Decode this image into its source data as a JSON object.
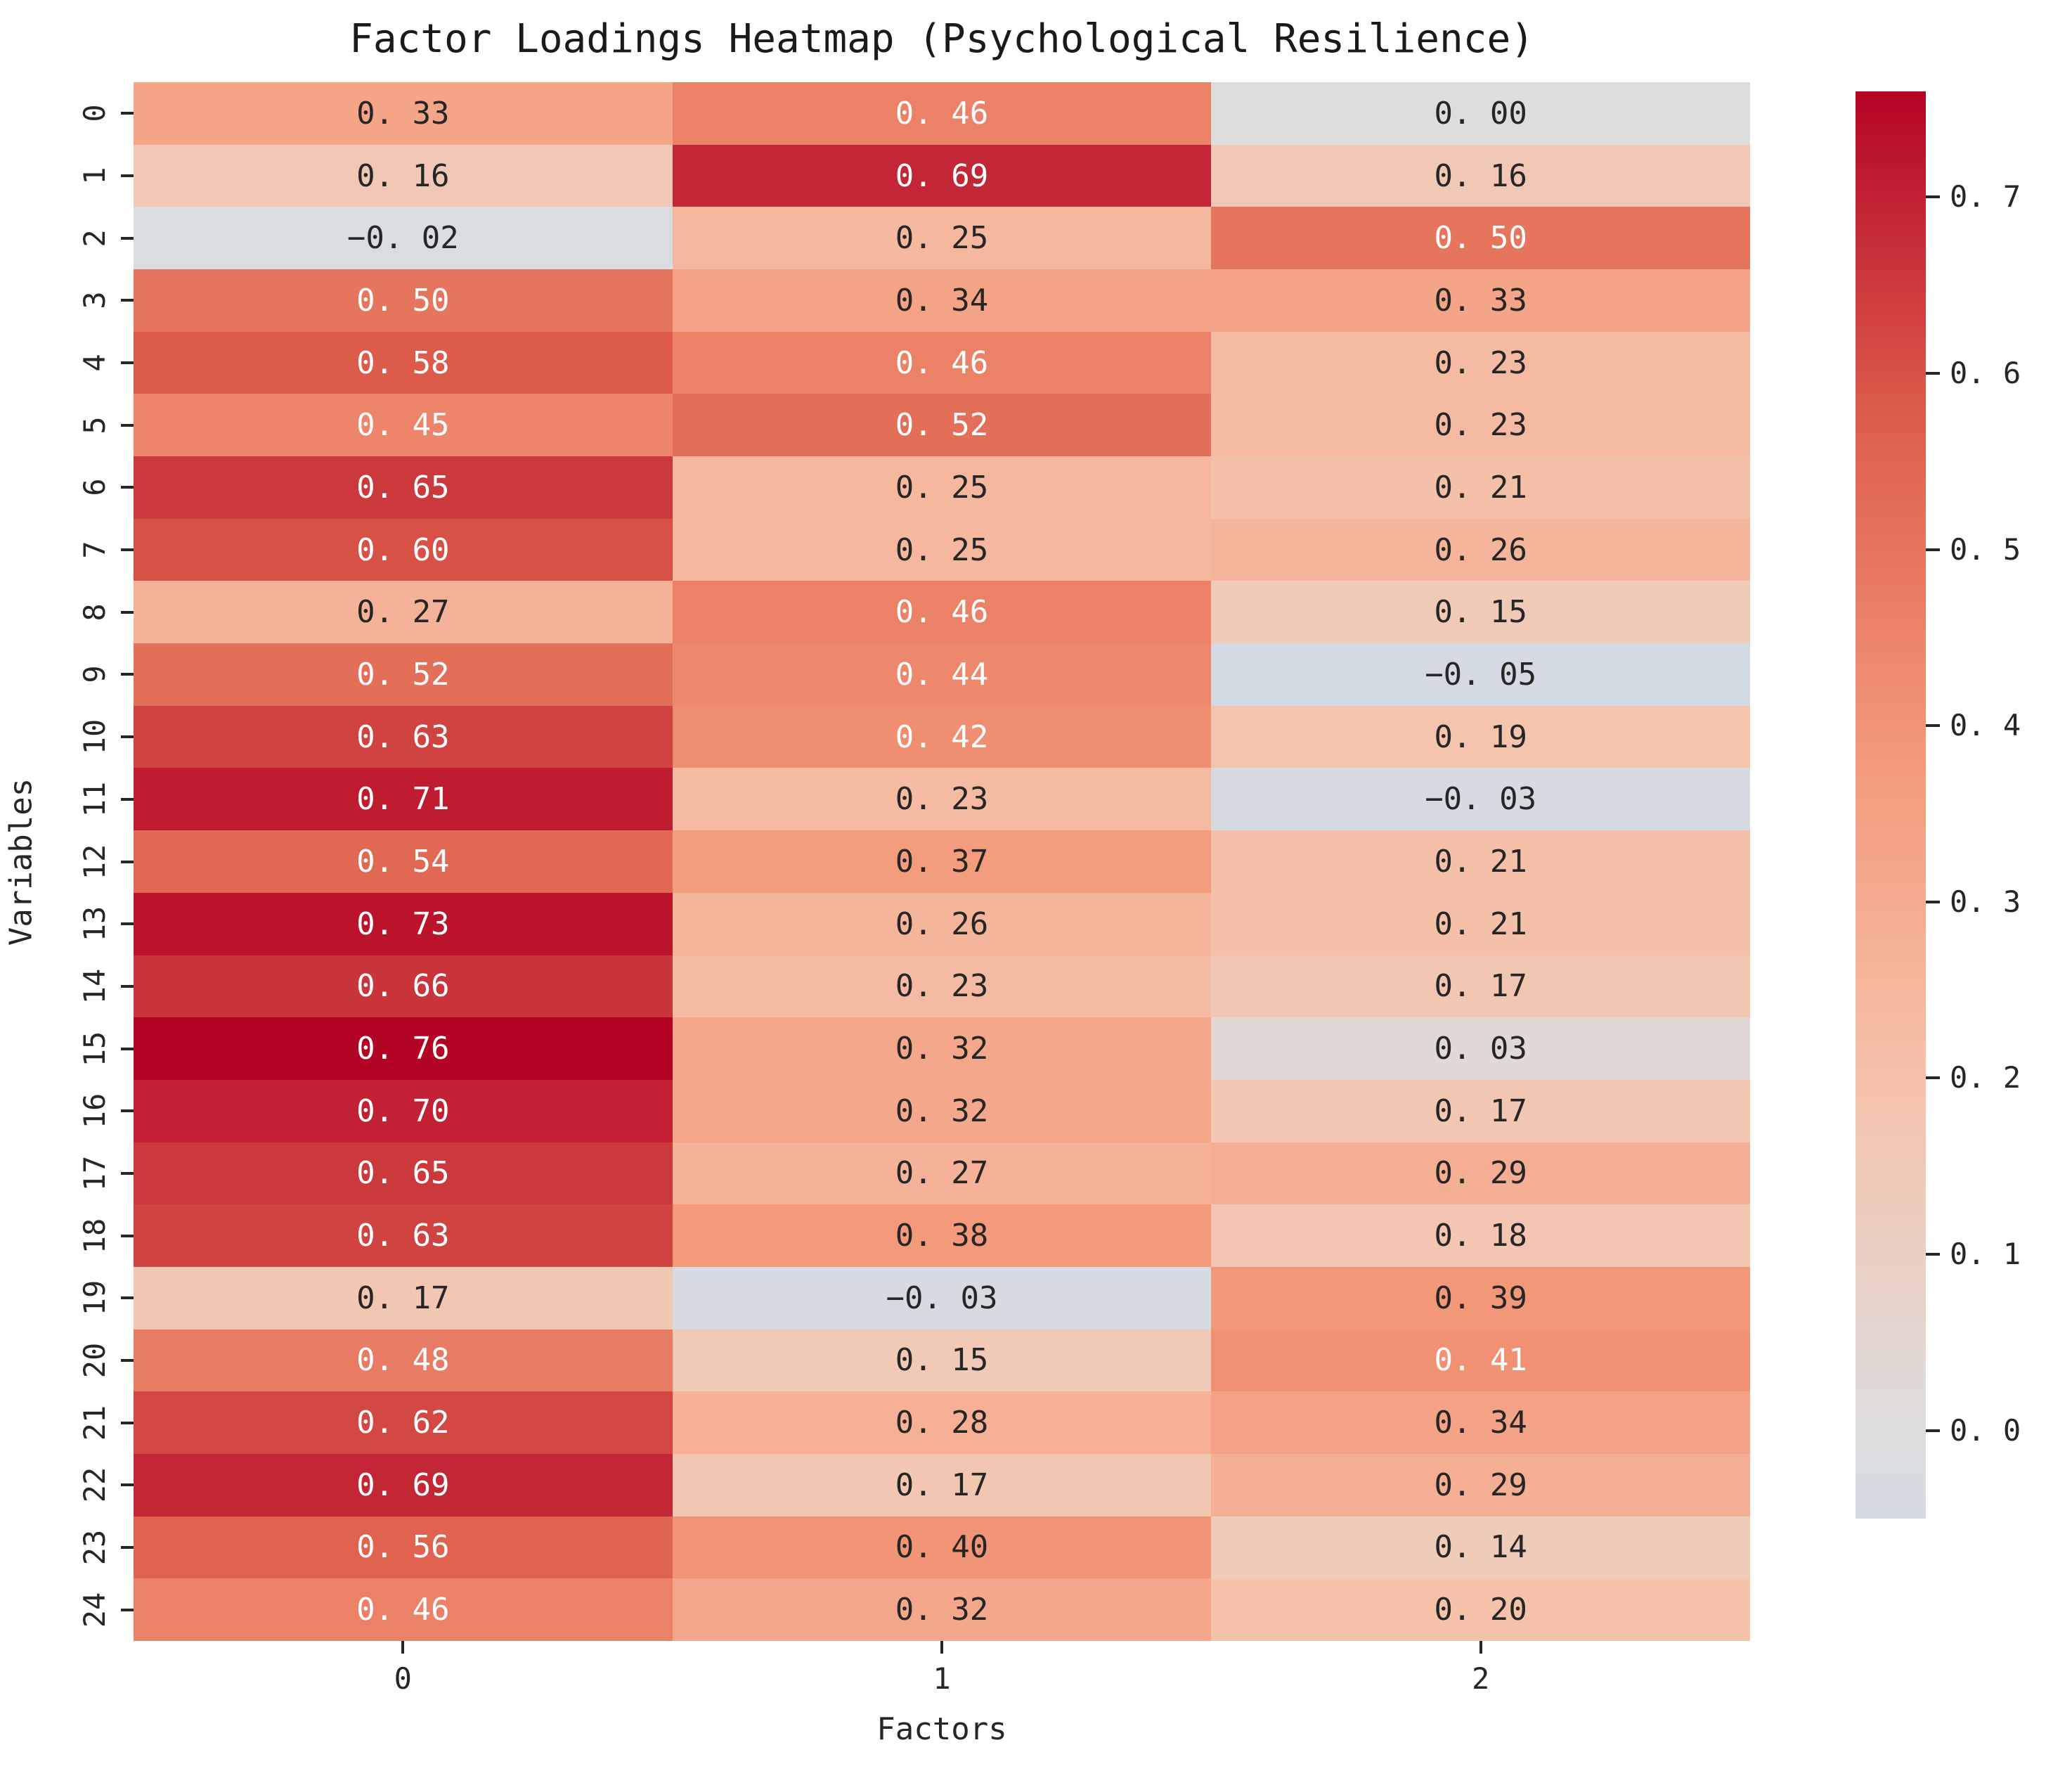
{
  "figure": {
    "title": "Factor Loadings Heatmap (Psychological Resilience)"
  },
  "chart_data": {
    "type": "heatmap",
    "title": "Factor Loadings Heatmap (Psychological Resilience)",
    "xlabel": "Factors",
    "ylabel": "Variables",
    "x_tick_labels": [
      "0",
      "1",
      "2"
    ],
    "y_tick_labels": [
      "0",
      "1",
      "2",
      "3",
      "4",
      "5",
      "6",
      "7",
      "8",
      "9",
      "10",
      "11",
      "12",
      "13",
      "14",
      "15",
      "16",
      "17",
      "18",
      "19",
      "20",
      "21",
      "22",
      "23",
      "24"
    ],
    "values": [
      [
        0.33,
        0.46,
        0.0
      ],
      [
        0.16,
        0.69,
        0.16
      ],
      [
        -0.02,
        0.25,
        0.5
      ],
      [
        0.5,
        0.34,
        0.33
      ],
      [
        0.58,
        0.46,
        0.23
      ],
      [
        0.45,
        0.52,
        0.23
      ],
      [
        0.65,
        0.25,
        0.21
      ],
      [
        0.6,
        0.25,
        0.26
      ],
      [
        0.27,
        0.46,
        0.15
      ],
      [
        0.52,
        0.44,
        -0.05
      ],
      [
        0.63,
        0.42,
        0.19
      ],
      [
        0.71,
        0.23,
        -0.03
      ],
      [
        0.54,
        0.37,
        0.21
      ],
      [
        0.73,
        0.26,
        0.21
      ],
      [
        0.66,
        0.23,
        0.17
      ],
      [
        0.76,
        0.32,
        0.03
      ],
      [
        0.7,
        0.32,
        0.17
      ],
      [
        0.65,
        0.27,
        0.29
      ],
      [
        0.63,
        0.38,
        0.18
      ],
      [
        0.17,
        -0.03,
        0.39
      ],
      [
        0.48,
        0.15,
        0.41
      ],
      [
        0.62,
        0.28,
        0.34
      ],
      [
        0.69,
        0.17,
        0.29
      ],
      [
        0.56,
        0.4,
        0.14
      ],
      [
        0.46,
        0.32,
        0.2
      ]
    ],
    "vmin": -0.05,
    "vmax": 0.76,
    "center": 0,
    "colormap": "coolwarm",
    "colorbar_ticks": [
      0.0,
      0.1,
      0.2,
      0.3,
      0.4,
      0.5,
      0.6,
      0.7
    ],
    "annotation_decimals": 2,
    "grid": "off",
    "legend_position": "colorbar-right"
  },
  "colors": {
    "background": "#ffffff",
    "text_dark": "#262626",
    "text_light": "#ffffff",
    "cmap_low": "#3b4cc0",
    "cmap_mid": "#dddddd",
    "cmap_high": "#b40426"
  }
}
